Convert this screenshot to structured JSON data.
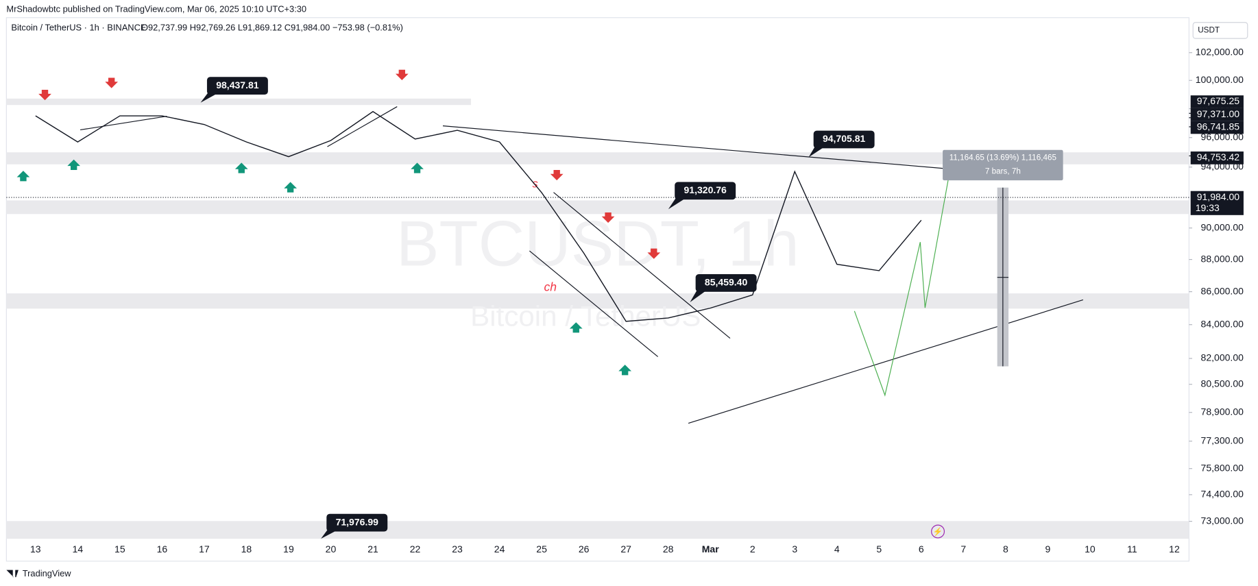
{
  "header": {
    "published": "MrShadowbtc published on TradingView.com, Mar 06, 2025 10:10 UTC+3:30",
    "symbol": "Bitcoin / TetherUS · 1h · BINANCE",
    "ohlc": "O92,737.99 H92,769.26 L91,869.12 C91,984.00 −753.98 (−0.81%)",
    "currency": "USDT"
  },
  "chart_data": {
    "type": "line",
    "log_scale": true,
    "watermark": "BTCUSDT, 1h",
    "watermark_subtitle": "Bitcoin / TetherUS",
    "categories": [
      "13",
      "14",
      "15",
      "16",
      "17",
      "18",
      "19",
      "20",
      "21",
      "22",
      "23",
      "24",
      "25",
      "26",
      "27",
      "28",
      "Mar",
      "2",
      "3",
      "4",
      "5",
      "6",
      "7",
      "8",
      "9",
      "10",
      "11",
      "12"
    ],
    "series": [
      {
        "name": "BTCUSDT",
        "color": "#131722",
        "values": [
          97500,
          95700,
          97500,
          97500,
          96900,
          95700,
          94700,
          95800,
          97800,
          95900,
          96500,
          95700,
          92300,
          88400,
          84200,
          84400,
          85000,
          85800,
          93700,
          87700,
          87300,
          90500,
          null,
          null,
          null,
          null,
          null,
          null
        ]
      }
    ],
    "ylim": [
      72100,
      104400
    ],
    "yticks": [
      {
        "value": 102000,
        "label": "102,000.00"
      },
      {
        "value": 100000,
        "label": "100,000.00"
      },
      {
        "value": 98000,
        "label": "98,000.00"
      },
      {
        "value": 96000,
        "label": "96,000.00"
      },
      {
        "value": 94000,
        "label": "94,000.00"
      },
      {
        "value": 90000,
        "label": "90,000.00"
      },
      {
        "value": 88000,
        "label": "88,000.00"
      },
      {
        "value": 86000,
        "label": "86,000.00"
      },
      {
        "value": 84000,
        "label": "84,000.00"
      },
      {
        "value": 82000,
        "label": "82,000.00"
      },
      {
        "value": 80500,
        "label": "80,500.00"
      },
      {
        "value": 78900,
        "label": "78,900.00"
      },
      {
        "value": 77300,
        "label": "77,300.00"
      },
      {
        "value": 75800,
        "label": "75,800.00"
      },
      {
        "value": 74400,
        "label": "74,400.00"
      },
      {
        "value": 73000,
        "label": "73,000.00"
      }
    ],
    "price_markers": [
      {
        "value": 97675.25,
        "label": "97,675.25"
      },
      {
        "value": 97371,
        "label": "97,371.00"
      },
      {
        "value": 96741.85,
        "label": "96,741.85"
      },
      {
        "value": 94753.42,
        "label": "94,753.42"
      }
    ],
    "last_price": {
      "value": 91984,
      "label": "91,984.00",
      "countdown": "19:33"
    },
    "callouts": [
      "98,437.81",
      "94,705.81",
      "91,320.76",
      "85,459.40",
      "71,976.99"
    ],
    "labels": [
      "s",
      "ch"
    ],
    "measure": [
      "11,164.65 (13.69%) 1,116,465",
      "7 bars, 7h"
    ]
  },
  "footer": {
    "brand": "TradingView"
  }
}
